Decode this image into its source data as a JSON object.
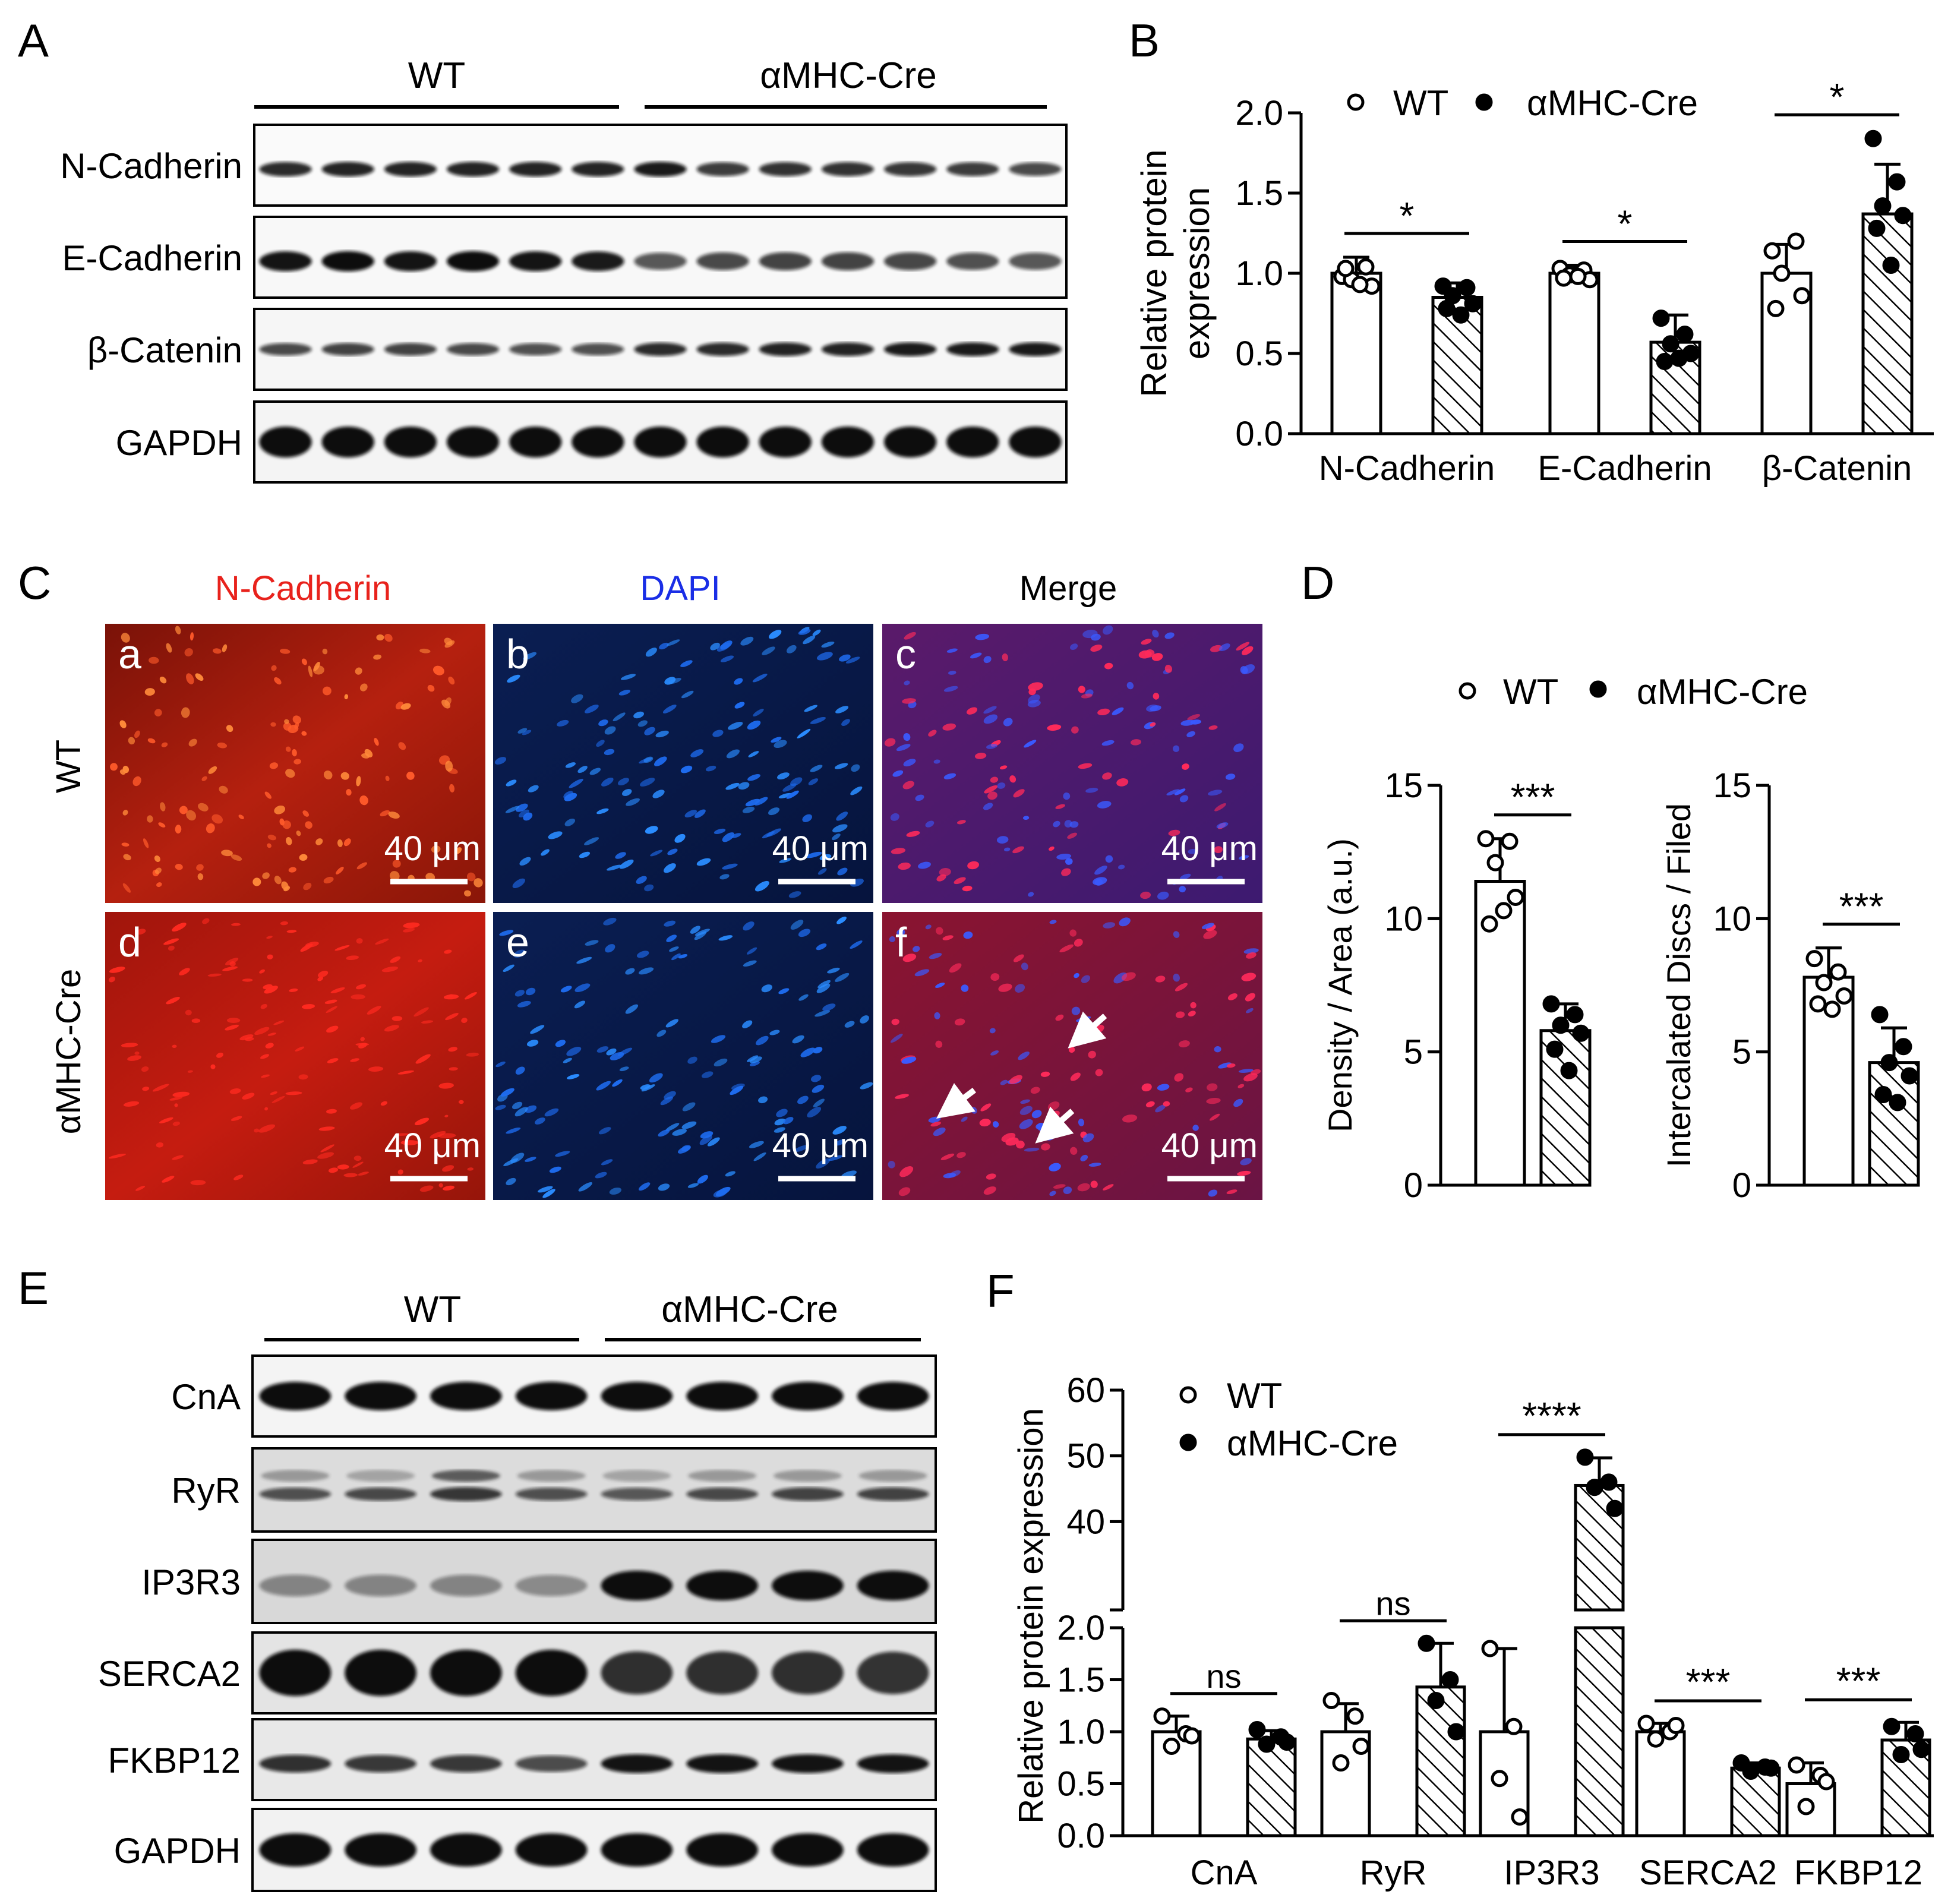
{
  "colors": {
    "nc_red": "#e8221c",
    "dapi_blue": "#1a2ee6",
    "black": "#000000"
  },
  "icons": {
    "open_marker": "open-circle-icon",
    "filled_marker": "filled-circle-icon",
    "hatch": "hatch-pattern",
    "arrow": "arrow-icon"
  },
  "panelA": {
    "letter": "A",
    "group_wt": "WT",
    "group_cre": "αMHC-Cre",
    "rows": [
      "N-Cadherin",
      "E-Cadherin",
      "β-Catenin",
      "GAPDH"
    ]
  },
  "panelB": {
    "letter": "B",
    "legend": [
      "WT",
      "αMHC-Cre"
    ],
    "ylabel": [
      "Relative protein",
      "expression"
    ],
    "chart_data": {
      "type": "bar",
      "categories": [
        "N-Cadherin",
        "E-Cadherin",
        "β-Catenin"
      ],
      "series": [
        {
          "name": "WT",
          "values": [
            1.0,
            1.0,
            1.0
          ],
          "errors": [
            0.1,
            0.05,
            0.18
          ],
          "points": [
            [
              0.98,
              1.04,
              0.96,
              0.92,
              1.03,
              0.93
            ],
            [
              1.03,
              1.02,
              0.99,
              0.96,
              0.97,
              0.98
            ],
            [
              1.14,
              1.2,
              1.0,
              0.86,
              0.78
            ]
          ]
        },
        {
          "name": "αMHC-Cre",
          "values": [
            0.85,
            0.57,
            1.37
          ],
          "errors": [
            0.09,
            0.17,
            0.31
          ],
          "points": [
            [
              0.92,
              0.91,
              0.86,
              0.81,
              0.78,
              0.74
            ],
            [
              0.72,
              0.62,
              0.56,
              0.5,
              0.45,
              0.47
            ],
            [
              1.84,
              1.57,
              1.42,
              1.36,
              1.28,
              1.05
            ]
          ]
        }
      ],
      "ylim": [
        0,
        2.0
      ],
      "yticks": [
        "0.0",
        "0.5",
        "1.0",
        "1.5",
        "2.0"
      ],
      "significance": [
        "*",
        "*",
        "*"
      ]
    }
  },
  "panelC": {
    "letter": "C",
    "col_titles": [
      "N-Cadherin",
      "DAPI",
      "Merge"
    ],
    "row_labels": [
      "WT",
      "αMHC-Cre"
    ],
    "sub_labels": [
      "a",
      "b",
      "c",
      "d",
      "e",
      "f"
    ],
    "scale": "40 μm"
  },
  "panelD": {
    "letter": "D",
    "legend": [
      "WT",
      "αMHC-Cre"
    ],
    "chart_data": [
      {
        "type": "bar",
        "ylabel": "Density / Area (a.u.)",
        "ylim": [
          0,
          15
        ],
        "yticks": [
          "0",
          "5",
          "10",
          "15"
        ],
        "series": [
          {
            "name": "WT",
            "value": 11.4,
            "error": 1.6,
            "points": [
              13.0,
              12.9,
              12.1,
              10.8,
              9.8,
              10.3
            ]
          },
          {
            "name": "αMHC-Cre",
            "value": 5.8,
            "error": 1.0,
            "points": [
              6.8,
              6.4,
              6.0,
              5.7,
              5.1,
              4.3
            ]
          }
        ],
        "significance": "***"
      },
      {
        "type": "bar",
        "ylabel": "Intercalated Discs / Filed",
        "ylim": [
          0,
          15
        ],
        "yticks": [
          "0",
          "5",
          "10",
          "15"
        ],
        "series": [
          {
            "name": "WT",
            "value": 7.8,
            "error": 1.1,
            "points": [
              8.5,
              8.0,
              7.6,
              7.1,
              6.8,
              6.6
            ]
          },
          {
            "name": "αMHC-Cre",
            "value": 4.6,
            "error": 1.3,
            "points": [
              6.4,
              5.2,
              4.6,
              4.1,
              3.4,
              3.1
            ]
          }
        ],
        "significance": "***"
      }
    ]
  },
  "panelE": {
    "letter": "E",
    "group_wt": "WT",
    "group_cre": "αMHC-Cre",
    "rows": [
      "CnA",
      "RyR",
      "IP3R3",
      "SERCA2",
      "FKBP12",
      "GAPDH"
    ]
  },
  "panelF": {
    "letter": "F",
    "legend": [
      "WT",
      "αMHC-Cre"
    ],
    "ylabel": "Relative protein expression",
    "chart_data": {
      "type": "bar",
      "categories": [
        "CnA",
        "RyR",
        "IP3R3",
        "SERCA2",
        "FKBP12"
      ],
      "series": [
        {
          "name": "WT",
          "values": [
            1.0,
            1.0,
            1.0,
            1.0,
            0.5
          ],
          "errors": [
            0.15,
            0.27,
            0.8,
            0.08,
            0.2
          ],
          "points": [
            [
              1.15,
              0.98,
              0.86,
              0.96
            ],
            [
              1.3,
              1.15,
              0.7,
              0.86
            ],
            [
              1.8,
              1.05,
              0.55,
              0.18
            ],
            [
              1.08,
              1.0,
              0.93,
              1.06
            ],
            [
              0.68,
              0.58,
              0.28,
              0.52
            ]
          ]
        },
        {
          "name": "αMHC-Cre",
          "values": [
            0.93,
            1.43,
            45.5,
            0.65,
            0.92
          ],
          "errors": [
            0.08,
            0.42,
            4.2,
            0.05,
            0.17
          ],
          "points": [
            [
              1.02,
              0.95,
              0.88,
              0.9
            ],
            [
              1.85,
              1.5,
              1.3,
              1.0
            ],
            [
              49.8,
              46.0,
              45.2,
              42.0
            ],
            [
              0.7,
              0.66,
              0.62,
              0.65
            ],
            [
              1.05,
              0.98,
              0.78,
              0.83
            ]
          ]
        }
      ],
      "axis_break": {
        "lower": [
          0,
          2.0
        ],
        "upper": [
          30,
          60
        ]
      },
      "yticks_lower": [
        "0.0",
        "0.5",
        "1.0",
        "1.5",
        "2.0"
      ],
      "yticks_upper": [
        "40",
        "50",
        "60"
      ],
      "significance": [
        "ns",
        "ns",
        "****",
        "***",
        "***"
      ]
    }
  }
}
